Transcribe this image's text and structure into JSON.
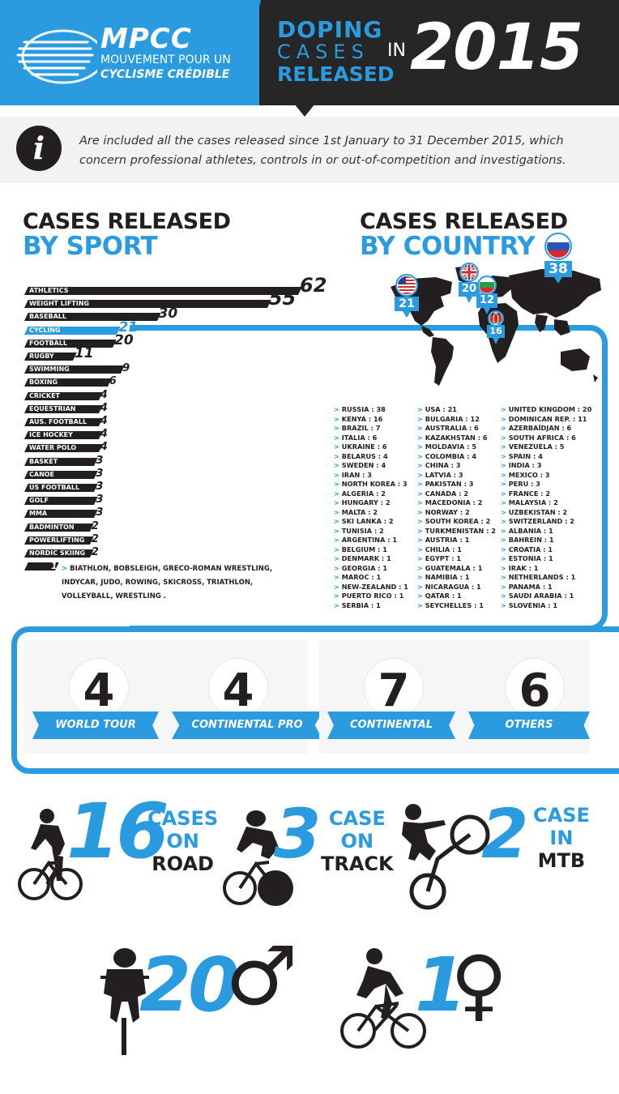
{
  "header": {
    "logo_title": "MPCC",
    "logo_sub1": "MOUVEMENT POUR UN",
    "logo_sub2": "CYCLISME CRÉDIBLE",
    "title_line1": "DOPING",
    "title_line2": "CASES",
    "title_line3": "RELEASED",
    "title_in": "IN",
    "year": "2015"
  },
  "info": {
    "icon": "i",
    "text": "Are included all the cases released since 1st January to 31 December 2015, which concern professional athletes, controls in or out-of-competition and investigations."
  },
  "sport_section": {
    "title1": "CASES RELEASED",
    "title2": "BY SPORT"
  },
  "country_section": {
    "title1": "CASES RELEASED",
    "title2": "BY COUNTRY"
  },
  "map_pins": [
    {
      "country": "RUSSIA",
      "value": "38",
      "flag": "flag-russia"
    },
    {
      "country": "USA",
      "value": "21",
      "flag": "flag-usa"
    },
    {
      "country": "UNITED KINGDOM",
      "value": "20",
      "flag": "flag-uk"
    },
    {
      "country": "BULGARIA",
      "value": "12",
      "flag": "flag-bulgaria"
    },
    {
      "country": "KENYA",
      "value": "16",
      "flag": "flag-kenya"
    }
  ],
  "chart_data": {
    "type": "bar",
    "categories": [
      "ATHLETICS",
      "WEIGHT LIFTING",
      "BASEBALL",
      "CYCLING",
      "FOOTBALL",
      "RUGBY",
      "SWIMMING",
      "BOXING",
      "CRICKET",
      "EQUESTRIAN",
      "AUS. FOOTBALL",
      "ICE HOCKEY",
      "WATER POLO",
      "BASKET",
      "CANOE",
      "US FOOTBALL",
      "GOLF",
      "MMA",
      "BADMINTON",
      "POWERLIFTING",
      "NORDIC SKIING"
    ],
    "values": [
      62,
      55,
      30,
      21,
      20,
      11,
      9,
      6,
      4,
      4,
      4,
      4,
      4,
      3,
      3,
      3,
      3,
      3,
      2,
      2,
      2
    ],
    "highlight": "CYCLING",
    "highlight_color": "#2b9be0",
    "bar_color": "#231f20",
    "last_value": 1,
    "last_label": "BIATHLON, BOBSLEIGH, GRECO-ROMAN WRESTLING, INDYCAR, JUDO, ROWING, SKICROSS, TRIATHLON, VOLLEYBALL, WRESTLING ."
  },
  "countries": {
    "col1": [
      "RUSSIA : 38",
      "KENYA : 16",
      "BRAZIL : 7",
      "ITALIA : 6",
      "UKRAINE : 6",
      "BELARUS : 4",
      "SWEDEN : 4",
      "IRAN : 3",
      "NORTH KOREA : 3",
      "ALGERIA : 2",
      "HUNGARY : 2",
      "MALTA : 2",
      "SKI LANKA : 2",
      "TUNISIA : 2",
      "ARGENTINA : 1",
      "BELGIUM : 1",
      "DENMARK : 1",
      "GEORGIA : 1",
      "MAROC : 1",
      "NEW-ZEALAND : 1",
      "PUERTO RICO : 1",
      "SERBIA : 1"
    ],
    "col2": [
      "USA : 21",
      "BULGARIA : 12",
      "AUSTRALIA : 6",
      "KAZAKHSTAN : 6",
      "MOLDAVIA : 5",
      "COLOMBIA : 4",
      "CHINA : 3",
      "LATVIA : 3",
      "PAKISTAN : 3",
      "CANADA : 2",
      "MACEDONIA : 2",
      "NORWAY : 2",
      "SOUTH KOREA : 2",
      "TURKMENISTAN : 2",
      "AUSTRIA : 1",
      "CHILIA : 1",
      "EGYPT : 1",
      "GUATEMALA : 1",
      "NAMIBIA : 1",
      "NICARAGUA : 1",
      "QATAR : 1",
      "SEYCHELLES : 1"
    ],
    "col3": [
      "UNITED KINGDOM : 20",
      "DOMINICAN REP. : 11",
      "AZERBAÏDJAN : 6",
      "SOUTH AFRICA : 6",
      "VENEZUELA : 5",
      "SPAIN : 4",
      "INDIA : 3",
      "MEXICO : 3",
      "PERU : 3",
      "FRANCE : 2",
      "MALAYSIA : 2",
      "UZBEKISTAN : 2",
      "SWITZERLAND : 2",
      "ALBANIA : 1",
      "BAHREIN : 1",
      "CROATIA : 1",
      "ESTONIA : 1",
      "IRAK : 1",
      "NETHERLANDS : 1",
      "PANAMA : 1",
      "SAUDI ARABIA : 1",
      "SLOVENIA : 1"
    ]
  },
  "teams": [
    {
      "value": "4",
      "label": "WORLD TOUR"
    },
    {
      "value": "4",
      "label": "CONTINENTAL PRO"
    },
    {
      "value": "7",
      "label": "CONTINENTAL"
    },
    {
      "value": "6",
      "label": "OTHERS"
    }
  ],
  "disciplines": [
    {
      "value": "16",
      "line1": "CASES",
      "line2": "ON",
      "line3": "ROAD"
    },
    {
      "value": "3",
      "line1": "CASE",
      "line2": "ON",
      "line3": "TRACK"
    },
    {
      "value": "2",
      "line1": "CASE",
      "line2": "IN",
      "line3": "MTB"
    }
  ],
  "gender": [
    {
      "value": "20",
      "symbol": "♂"
    },
    {
      "value": "1",
      "symbol": "♀"
    }
  ],
  "colors": {
    "accent": "#2b9be0",
    "dark": "#231f20"
  }
}
